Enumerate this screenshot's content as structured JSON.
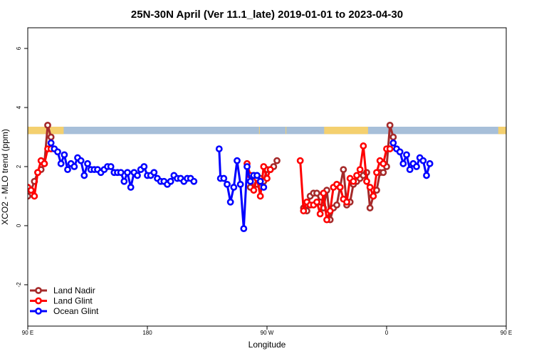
{
  "chart_data": {
    "type": "line",
    "title": "25N-30N April (Ver 11.1_late)   2019-01-01 to 2023-04-30",
    "xlabel": "Longitude",
    "ylabel": "XCO2 - MLO trend (ppm)",
    "xlim": [
      90,
      450
    ],
    "ylim": [
      -3.4,
      6.7
    ],
    "x_ticks": [
      {
        "value": 90,
        "label": "90 E"
      },
      {
        "value": 180,
        "label": "180"
      },
      {
        "value": 270,
        "label": "90 W"
      },
      {
        "value": 360,
        "label": "0"
      },
      {
        "value": 450,
        "label": "90 E"
      },
      {
        "value": 540,
        "label": "180"
      }
    ],
    "y_ticks": [
      -2,
      0,
      2,
      4,
      6
    ],
    "grid": false,
    "legend_position": "bottom-left",
    "colors": {
      "land_nadir": "#a52a2a",
      "land_glint": "#ff0000",
      "ocean_glint": "#0000ff",
      "land_band": "#f4d06f",
      "ocean_band": "#a7bfd9"
    },
    "band": {
      "y_range": [
        3.1,
        3.35
      ],
      "land_segments": [
        [
          90,
          117
        ],
        [
          264,
          264.5
        ],
        [
          284,
          284.5
        ],
        [
          313,
          346
        ],
        [
          444,
          470
        ]
      ]
    },
    "series": [
      {
        "name": "Land Nadir",
        "color": "#a52a2a",
        "segments": [
          [
            [
              90,
              1.0
            ],
            [
              92.5,
              1.2
            ],
            [
              95,
              1.5
            ],
            [
              97.5,
              1.8
            ],
            [
              100,
              1.9
            ],
            [
              102.5,
              2.1
            ],
            [
              105,
              3.4
            ],
            [
              107.5,
              3.0
            ]
          ],
          [
            [
              257.5,
              1.3
            ],
            [
              260,
              1.7
            ],
            [
              262.5,
              1.4
            ],
            [
              265,
              1.6
            ],
            [
              267.5,
              1.5
            ],
            [
              270,
              1.9
            ],
            [
              272.5,
              1.9
            ],
            [
              275,
              2.0
            ],
            [
              277.5,
              2.2
            ]
          ],
          [
            [
              297.5,
              0.6
            ],
            [
              300,
              0.5
            ],
            [
              302.5,
              1.0
            ],
            [
              305,
              1.1
            ],
            [
              307.5,
              1.1
            ],
            [
              310,
              0.8
            ],
            [
              312.5,
              0.6
            ],
            [
              315,
              1.2
            ],
            [
              317.5,
              0.2
            ],
            [
              320,
              0.6
            ],
            [
              322.5,
              0.7
            ],
            [
              325,
              1.3
            ],
            [
              327.5,
              1.9
            ],
            [
              330,
              0.7
            ],
            [
              332.5,
              0.8
            ],
            [
              335,
              1.4
            ],
            [
              337.5,
              1.5
            ],
            [
              340,
              1.6
            ],
            [
              342.5,
              1.7
            ],
            [
              345,
              1.8
            ],
            [
              347.5,
              0.6
            ],
            [
              350,
              1.0
            ],
            [
              352.5,
              1.2
            ],
            [
              355,
              1.8
            ],
            [
              357.5,
              1.8
            ],
            [
              360,
              2.0
            ],
            [
              362.5,
              3.4
            ],
            [
              365,
              3.0
            ]
          ]
        ]
      },
      {
        "name": "Land Glint",
        "color": "#ff0000",
        "segments": [
          [
            [
              90,
              1.3
            ],
            [
              92.5,
              1.2
            ],
            [
              95,
              1.0
            ],
            [
              97.5,
              1.8
            ],
            [
              100,
              2.2
            ],
            [
              102.5,
              2.1
            ],
            [
              105,
              2.6
            ],
            [
              107.5,
              2.6
            ]
          ],
          [
            [
              255,
              2.1
            ],
            [
              257.5,
              1.7
            ],
            [
              260,
              1.2
            ],
            [
              262.5,
              1.6
            ],
            [
              265,
              1.0
            ],
            [
              267.5,
              2.0
            ],
            [
              270,
              1.6
            ],
            [
              272.5,
              1.9
            ]
          ],
          [
            [
              295,
              2.2
            ],
            [
              297.5,
              0.5
            ],
            [
              300,
              0.8
            ],
            [
              302.5,
              0.7
            ],
            [
              305,
              0.7
            ],
            [
              307.5,
              0.8
            ],
            [
              310,
              0.4
            ],
            [
              312.5,
              1.1
            ],
            [
              315,
              0.2
            ],
            [
              317.5,
              0.5
            ],
            [
              320,
              1.3
            ],
            [
              322.5,
              1.4
            ],
            [
              325,
              1.3
            ],
            [
              327.5,
              0.9
            ],
            [
              330,
              0.8
            ],
            [
              332.5,
              1.6
            ],
            [
              335,
              1.5
            ],
            [
              337.5,
              1.7
            ],
            [
              340,
              1.9
            ],
            [
              342.5,
              2.7
            ],
            [
              345,
              1.5
            ],
            [
              347.5,
              1.3
            ],
            [
              350,
              1.0
            ],
            [
              352.5,
              1.8
            ],
            [
              355,
              2.2
            ],
            [
              357.5,
              2.1
            ],
            [
              360,
              2.6
            ],
            [
              362.5,
              2.6
            ]
          ]
        ]
      },
      {
        "name": "Ocean Glint",
        "color": "#0000ff",
        "segments": [
          [
            [
              107.5,
              2.8
            ],
            [
              110,
              2.6
            ],
            [
              112.5,
              2.5
            ],
            [
              115,
              2.1
            ],
            [
              117.5,
              2.4
            ],
            [
              120,
              1.9
            ],
            [
              122.5,
              2.1
            ],
            [
              125,
              2.0
            ],
            [
              127.5,
              2.3
            ],
            [
              130,
              2.2
            ],
            [
              132.5,
              1.7
            ],
            [
              135,
              2.1
            ],
            [
              137.5,
              1.9
            ],
            [
              140,
              1.9
            ],
            [
              142.5,
              1.9
            ],
            [
              145,
              1.8
            ],
            [
              147.5,
              1.9
            ],
            [
              150,
              2.0
            ],
            [
              152.5,
              2.0
            ],
            [
              155,
              1.8
            ],
            [
              157.5,
              1.8
            ],
            [
              160,
              1.8
            ],
            [
              162.5,
              1.5
            ],
            [
              165,
              1.8
            ],
            [
              167.5,
              1.3
            ],
            [
              170,
              1.8
            ],
            [
              172.5,
              1.7
            ],
            [
              175,
              1.9
            ],
            [
              177.5,
              2.0
            ],
            [
              180,
              1.7
            ],
            [
              182.5,
              1.7
            ],
            [
              185,
              1.8
            ],
            [
              187.5,
              1.6
            ],
            [
              190,
              1.5
            ],
            [
              192.5,
              1.5
            ],
            [
              195,
              1.4
            ],
            [
              197.5,
              1.5
            ],
            [
              200,
              1.7
            ],
            [
              202.5,
              1.6
            ],
            [
              205,
              1.6
            ],
            [
              207.5,
              1.5
            ],
            [
              210,
              1.6
            ],
            [
              212.5,
              1.6
            ],
            [
              215,
              1.5
            ]
          ],
          [
            [
              234,
              2.6
            ],
            [
              235,
              1.6
            ],
            [
              237.5,
              1.6
            ],
            [
              240,
              1.4
            ],
            [
              242.5,
              0.8
            ],
            [
              245,
              1.3
            ],
            [
              247.5,
              2.2
            ],
            [
              250,
              1.4
            ],
            [
              252.5,
              -0.1
            ],
            [
              255,
              2.0
            ],
            [
              257.5,
              1.5
            ],
            [
              260,
              1.7
            ],
            [
              262.5,
              1.7
            ],
            [
              265,
              1.5
            ],
            [
              267.5,
              1.3
            ]
          ],
          [
            [
              365,
              2.8
            ],
            [
              367.5,
              2.6
            ],
            [
              370,
              2.5
            ],
            [
              372.5,
              2.1
            ],
            [
              375,
              2.4
            ],
            [
              377.5,
              1.9
            ],
            [
              380,
              2.1
            ],
            [
              382.5,
              2.0
            ],
            [
              385,
              2.3
            ],
            [
              387.5,
              2.2
            ],
            [
              390,
              1.7
            ],
            [
              392.5,
              2.1
            ]
          ]
        ]
      }
    ]
  }
}
